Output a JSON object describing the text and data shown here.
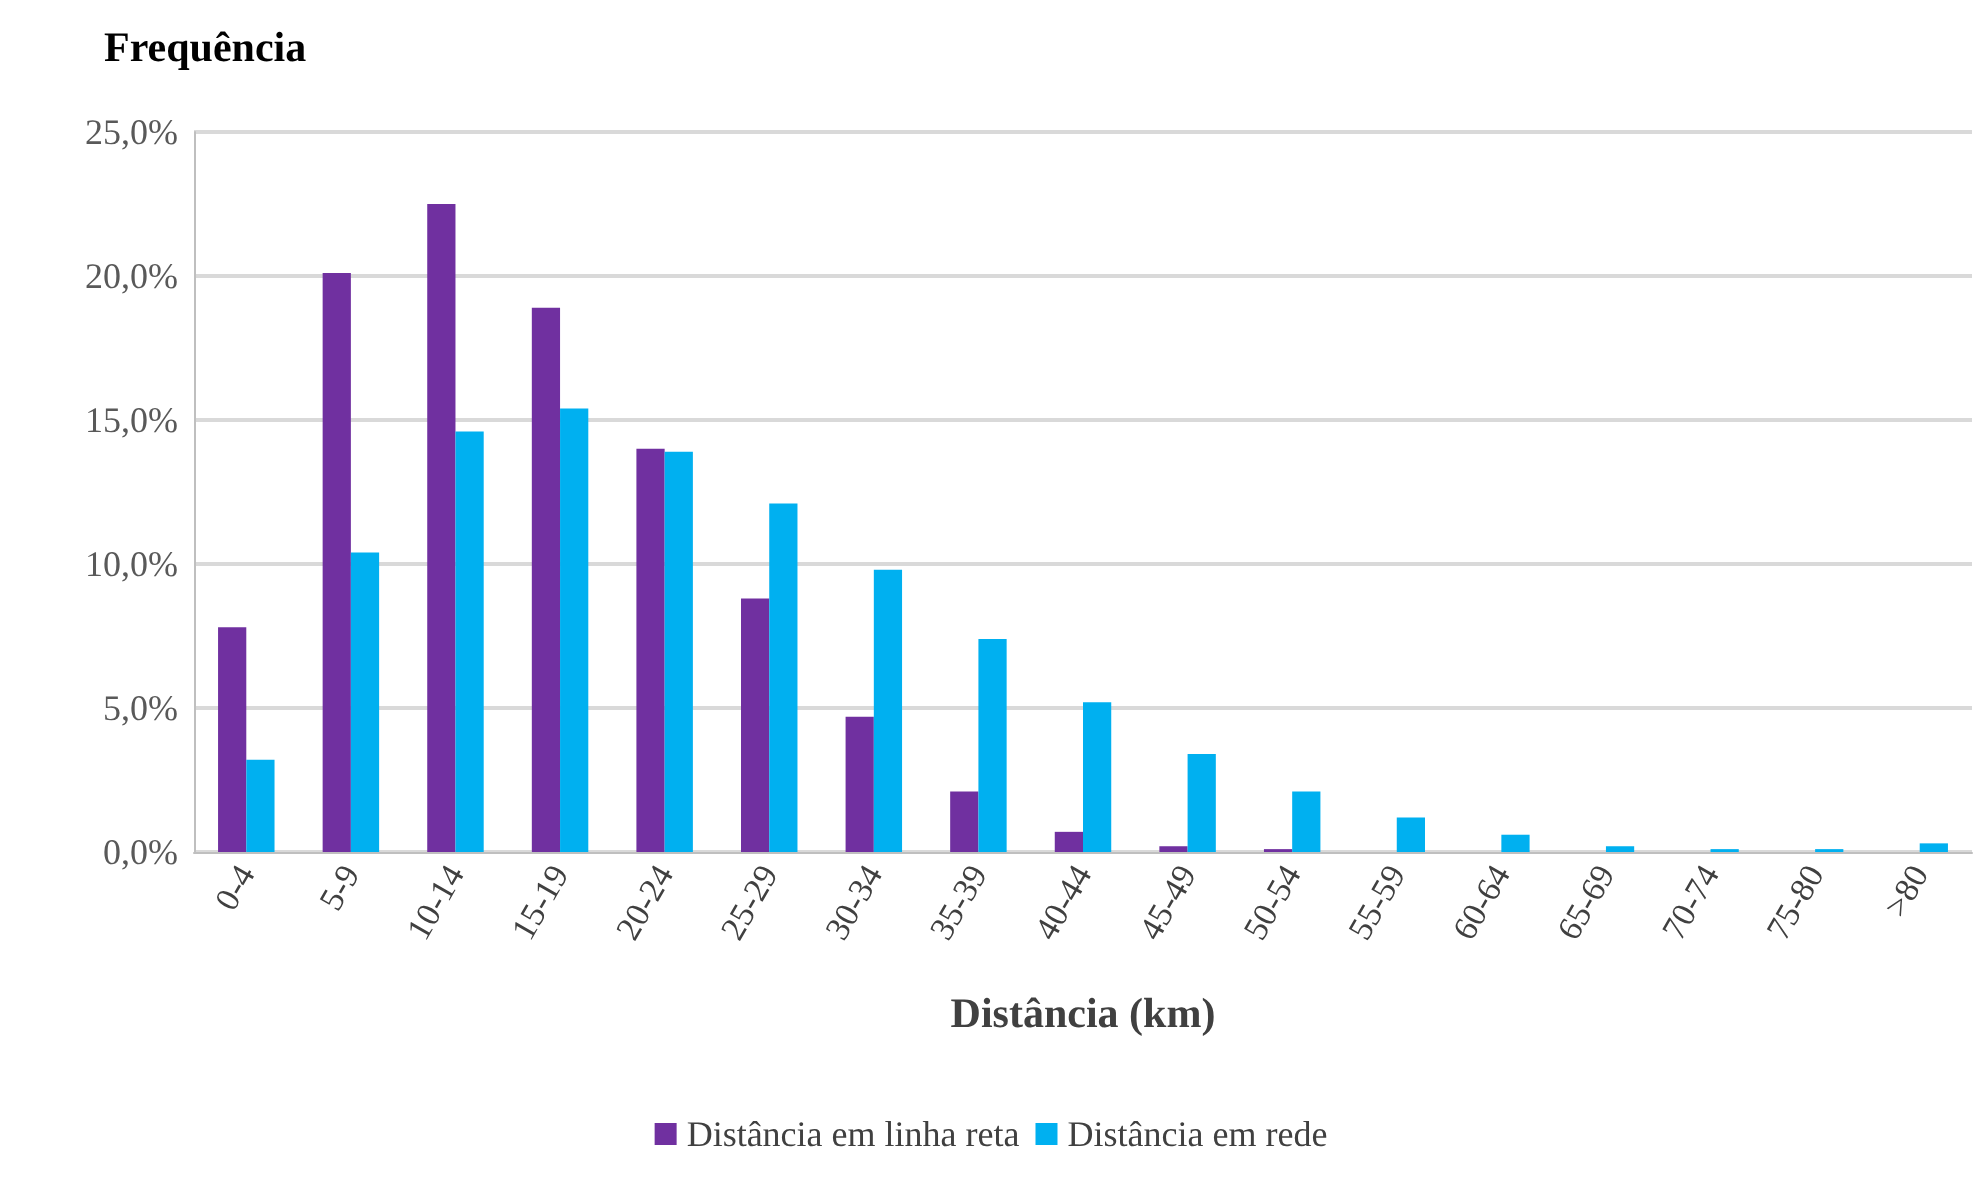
{
  "chart_data": {
    "type": "bar",
    "ylabel": "Frequência",
    "xlabel": "Distância (km)",
    "categories": [
      "0-4",
      "5-9",
      "10-14",
      "15-19",
      "20-24",
      "25-29",
      "30-34",
      "35-39",
      "40-44",
      "45-49",
      "50-54",
      "55-59",
      "60-64",
      "65-69",
      "70-74",
      "75-80",
      ">80"
    ],
    "series": [
      {
        "name": "Distância em linha reta",
        "color": "#7030a0",
        "values": [
          7.8,
          20.1,
          22.5,
          18.9,
          14.0,
          8.8,
          4.7,
          2.1,
          0.7,
          0.2,
          0.1,
          0,
          0,
          0,
          0,
          0,
          0
        ]
      },
      {
        "name": "Distância em rede",
        "color": "#00b0f0",
        "values": [
          3.2,
          10.4,
          14.6,
          15.4,
          13.9,
          12.1,
          9.8,
          7.4,
          5.2,
          3.4,
          2.1,
          1.2,
          0.6,
          0.2,
          0.1,
          0.1,
          0.3
        ]
      }
    ],
    "ylim": [
      0,
      25
    ],
    "yticks": [
      {
        "value": 0,
        "label": "0,0%"
      },
      {
        "value": 5,
        "label": "5,0%"
      },
      {
        "value": 10,
        "label": "10,0%"
      },
      {
        "value": 15,
        "label": "15,0%"
      },
      {
        "value": 20,
        "label": "20,0%"
      },
      {
        "value": 25,
        "label": "25,0%"
      }
    ],
    "grid": "y",
    "legend": "bottom"
  }
}
